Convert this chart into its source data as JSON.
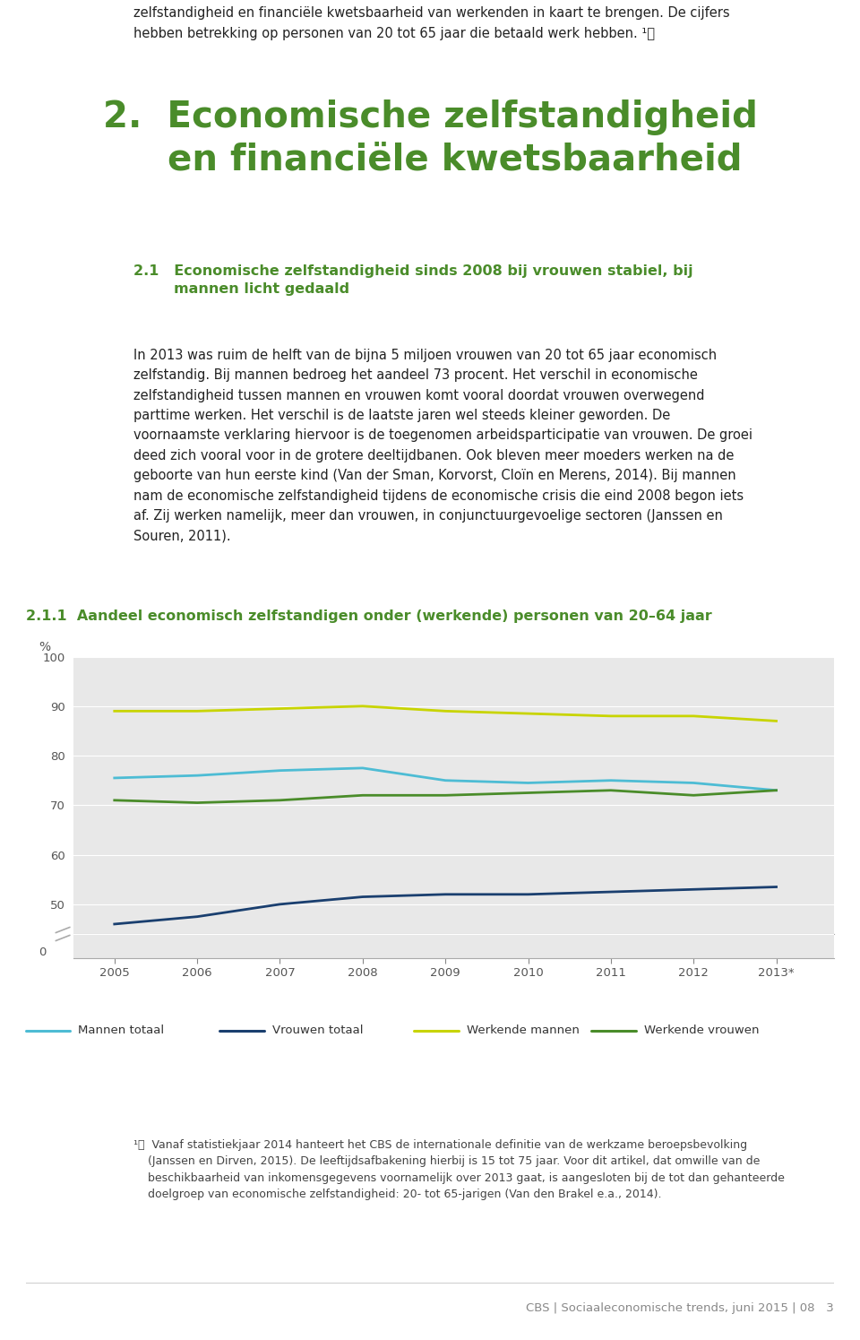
{
  "years_numeric": [
    2005,
    2006,
    2007,
    2008,
    2009,
    2010,
    2011,
    2012,
    2013
  ],
  "year_labels": [
    "2005",
    "2006",
    "2007",
    "2008",
    "2009",
    "2010",
    "2011",
    "2012",
    "2013*"
  ],
  "mannen_totaal": [
    75.5,
    76.0,
    77.0,
    77.5,
    75.0,
    74.5,
    75.0,
    74.5,
    73.0
  ],
  "vrouwen_totaal": [
    46.0,
    47.5,
    50.0,
    51.5,
    52.0,
    52.0,
    52.5,
    53.0,
    53.5
  ],
  "werkende_mannen": [
    89.0,
    89.0,
    89.5,
    90.0,
    89.0,
    88.5,
    88.0,
    88.0,
    87.0
  ],
  "werkende_vrouwen": [
    71.0,
    70.5,
    71.0,
    72.0,
    72.0,
    72.5,
    73.0,
    72.0,
    73.0
  ],
  "color_mannen_totaal": "#4dbcd4",
  "color_vrouwen_totaal": "#1a3f6f",
  "color_werkende_mannen": "#c8d400",
  "color_werkende_vrouwen": "#4a8c2a",
  "background_color": "#ffffff",
  "chart_bg_color": "#e8e8e8",
  "green_color": "#4a8c2a",
  "line_width": 2.0,
  "legend_items": [
    "Mannen totaal",
    "Vrouwen totaal",
    "Werkende mannen",
    "Werkende vrouwen"
  ]
}
